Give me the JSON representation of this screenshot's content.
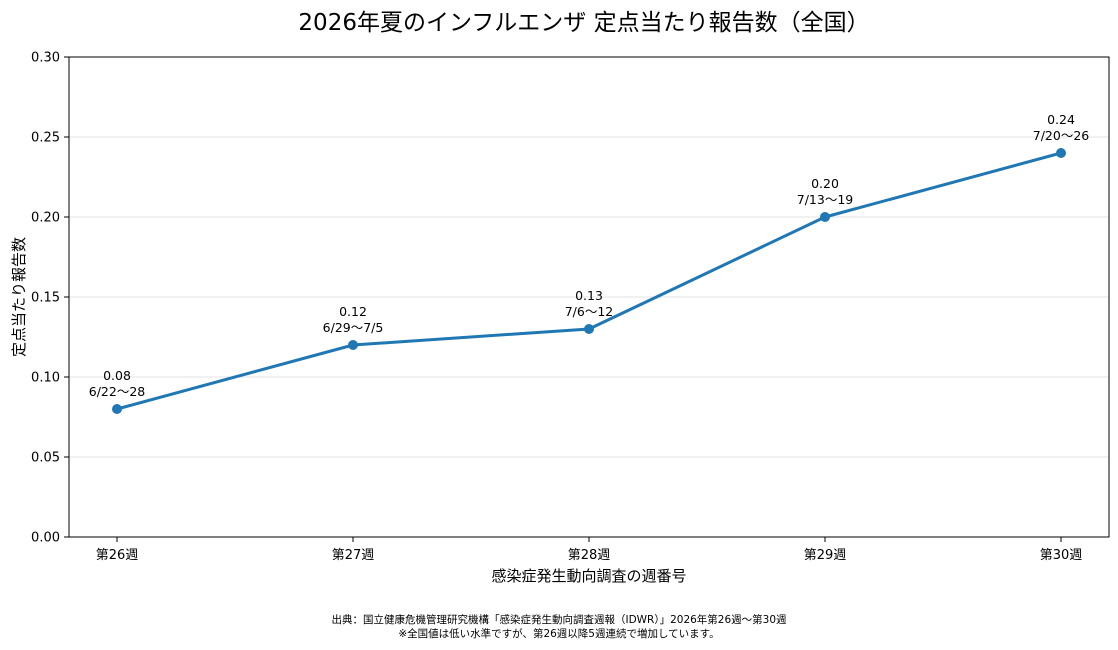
{
  "chart_data": {
    "type": "line",
    "title": "2026年夏のインフルエンザ 定点当たり報告数（全国）",
    "xlabel": "感染症発生動向調査の週番号",
    "ylabel": "定点当たり報告数",
    "categories": [
      "第26週",
      "第27週",
      "第28週",
      "第29週",
      "第30週"
    ],
    "series": [
      {
        "values": [
          0.08,
          0.12,
          0.13,
          0.2,
          0.24
        ]
      }
    ],
    "value_labels": [
      "0.08",
      "0.12",
      "0.13",
      "0.20",
      "0.24"
    ],
    "date_labels": [
      "6/22〜28",
      "6/29〜7/5",
      "7/6〜12",
      "7/13〜19",
      "7/20〜26"
    ],
    "ylim": [
      0,
      0.3
    ],
    "yticks": [
      "0.00",
      "0.05",
      "0.10",
      "0.15",
      "0.20",
      "0.25",
      "0.30"
    ],
    "grid": "horizontal",
    "line_color": "#1f77b4"
  },
  "footer": {
    "source": "出典：国立健康危機管理研究機構「感染症発生動向調査週報（IDWR）」2026年第26週〜第30週",
    "note": "※全国値は低い水準ですが、第26週以降5週連続で増加しています。"
  }
}
